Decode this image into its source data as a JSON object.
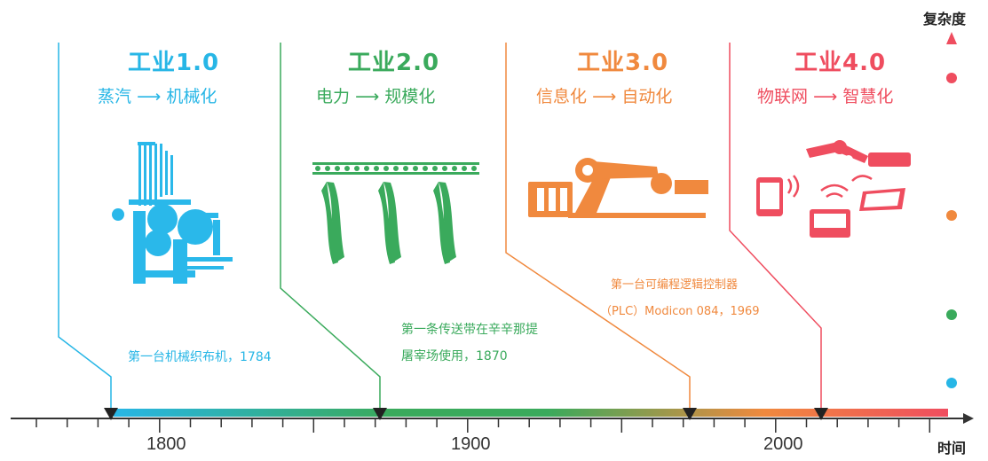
{
  "colors": {
    "era1": "#27b6e6",
    "era2": "#3aaa5c",
    "era3": "#f0893e",
    "era4": "#ef4d5f",
    "axis": "#333333"
  },
  "eras": [
    {
      "title": "工业1.0",
      "subtitle_from": "蒸汽",
      "subtitle_to": "机械化",
      "note": "第一台机械织布机，1784",
      "icon": "loom-icon"
    },
    {
      "title": "工业2.0",
      "subtitle_from": "电力",
      "subtitle_to": "规模化",
      "note_line1": "第一条传送带在辛辛那提",
      "note_line2": "屠宰场使用，1870",
      "icon": "conveyor-icon"
    },
    {
      "title": "工业3.0",
      "subtitle_from": "信息化",
      "subtitle_to": "自动化",
      "note_line1": "第一台可编程逻辑控制器",
      "note_line2": "（PLC）Modicon 084，1969",
      "icon": "robot-arm-icon"
    },
    {
      "title": "工业4.0",
      "subtitle_from": "物联网",
      "subtitle_to": "智慧化",
      "icon": "iot-icon"
    }
  ],
  "axis": {
    "x_title": "时间",
    "y_title": "复杂度",
    "tick_labels": [
      "1800",
      "1900",
      "2000"
    ],
    "markers": [
      1784,
      1870,
      1969,
      2014
    ]
  },
  "arrow": "⟶"
}
